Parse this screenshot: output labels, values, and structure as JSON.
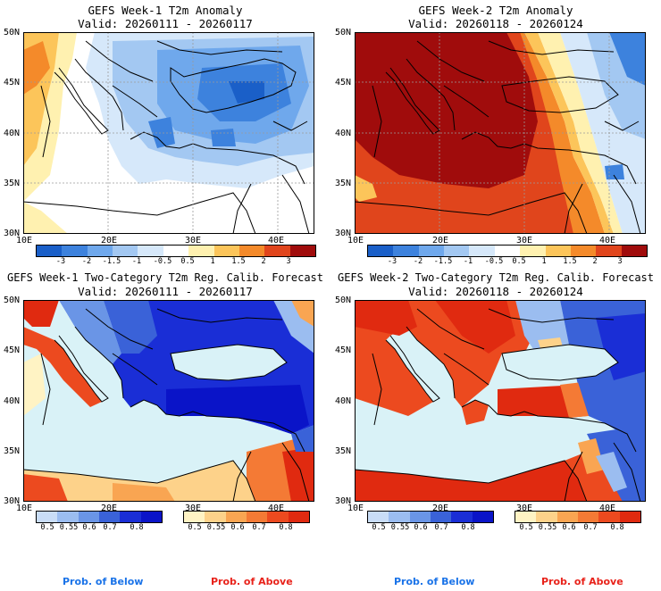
{
  "panels": [
    {
      "title1": "GEFS Week-1 T2m Anomaly",
      "title2": "Valid: 20260111 - 20260117"
    },
    {
      "title1": "GEFS Week-2 T2m Anomaly",
      "title2": "Valid: 20260118 - 20260124"
    },
    {
      "title1": "GEFS Week-1 Two-Category T2m Reg. Calib. Forecast",
      "title2": "Valid: 20260111 - 20260117"
    },
    {
      "title1": "GEFS Week-2 Two-Category T2m Reg. Calib. Forecast",
      "title2": "Valid: 20260118 - 20260124"
    }
  ],
  "map_axes": {
    "lat_labels": [
      "50N",
      "45N",
      "40N",
      "35N",
      "30N"
    ],
    "lon_labels": [
      "10E",
      "20E",
      "30E",
      "40E"
    ]
  },
  "anomaly_colorbar": {
    "ticks": [
      "-3",
      "-2",
      "-1.5",
      "-1",
      "-0.5",
      "0.5",
      "1",
      "1.5",
      "2",
      "3"
    ],
    "colors": [
      "#1a5fc8",
      "#3d82dd",
      "#6fa8ec",
      "#a3c8f2",
      "#d6e8fa",
      "#ffffff",
      "#fff1b0",
      "#fcc55a",
      "#f48a2a",
      "#e0451c",
      "#a00c0c"
    ]
  },
  "prob_colorbar_below": {
    "ticks": [
      "0.5",
      "0.55",
      "0.6",
      "0.7",
      "0.8"
    ],
    "colors": [
      "#c9ddf7",
      "#9bbdf0",
      "#6a95e6",
      "#3a62d8",
      "#1a2ed6",
      "#0a14c8"
    ]
  },
  "prob_colorbar_above": {
    "ticks": [
      "0.5",
      "0.55",
      "0.6",
      "0.7",
      "0.8"
    ],
    "colors": [
      "#fff3c4",
      "#fdd28a",
      "#f9a552",
      "#f47a35",
      "#ec4a1f",
      "#e02a10"
    ]
  },
  "legend": {
    "below": "Prob. of Below",
    "above": "Prob. of Above"
  },
  "colors": {
    "below_text": "#1a73e8",
    "above_text": "#e8221a",
    "sea_prob": "#d9f2f7"
  }
}
